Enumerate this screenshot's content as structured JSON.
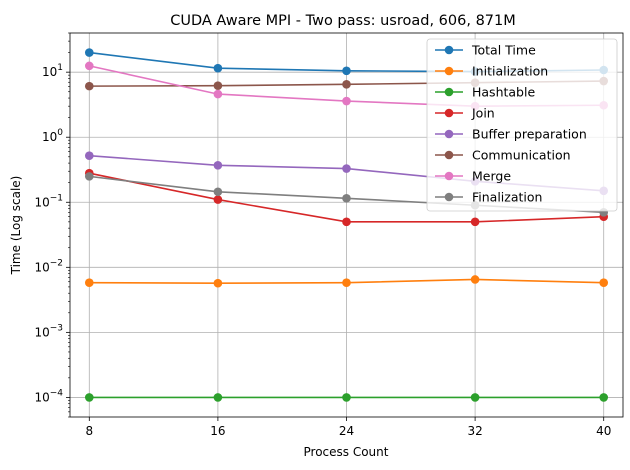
{
  "chart_data": {
    "type": "line",
    "title": "CUDA Aware MPI - Two pass: usroad, 606, 871M",
    "xlabel": "Process Count",
    "ylabel": "Time (Log scale)",
    "x": [
      8,
      16,
      24,
      32,
      40
    ],
    "x_ticks": [
      "8",
      "16",
      "24",
      "32",
      "40"
    ],
    "yscale": "log",
    "ylim": [
      5e-05,
      40
    ],
    "y_ticks": [
      {
        "value": 0.0001,
        "base": "10",
        "exp": "−4"
      },
      {
        "value": 0.001,
        "base": "10",
        "exp": "−3"
      },
      {
        "value": 0.01,
        "base": "10",
        "exp": "−2"
      },
      {
        "value": 0.1,
        "base": "10",
        "exp": "−1"
      },
      {
        "value": 1,
        "base": "10",
        "exp": "0"
      },
      {
        "value": 10,
        "base": "10",
        "exp": "1"
      }
    ],
    "grid": true,
    "legend_position": "top-right",
    "series": [
      {
        "name": "Total Time",
        "color": "#1f77b4",
        "values": [
          20,
          11.5,
          10.5,
          10.2,
          10.8
        ]
      },
      {
        "name": "Initialization",
        "color": "#ff7f0e",
        "values": [
          0.0058,
          0.0057,
          0.0058,
          0.0065,
          0.0058
        ]
      },
      {
        "name": "Hashtable",
        "color": "#2ca02c",
        "values": [
          0.0001,
          0.0001,
          0.0001,
          0.0001,
          0.0001
        ]
      },
      {
        "name": "Join",
        "color": "#d62728",
        "values": [
          0.28,
          0.11,
          0.05,
          0.05,
          0.06
        ]
      },
      {
        "name": "Buffer preparation",
        "color": "#9467bd",
        "values": [
          0.52,
          0.37,
          0.33,
          0.21,
          0.15
        ]
      },
      {
        "name": "Communication",
        "color": "#8c564b",
        "values": [
          6.1,
          6.2,
          6.5,
          6.9,
          7.3
        ]
      },
      {
        "name": "Merge",
        "color": "#e377c2",
        "values": [
          12.5,
          4.6,
          3.6,
          3.0,
          3.1
        ]
      },
      {
        "name": "Finalization",
        "color": "#7f7f7f",
        "values": [
          0.25,
          0.145,
          0.115,
          0.09,
          0.07
        ]
      }
    ]
  }
}
